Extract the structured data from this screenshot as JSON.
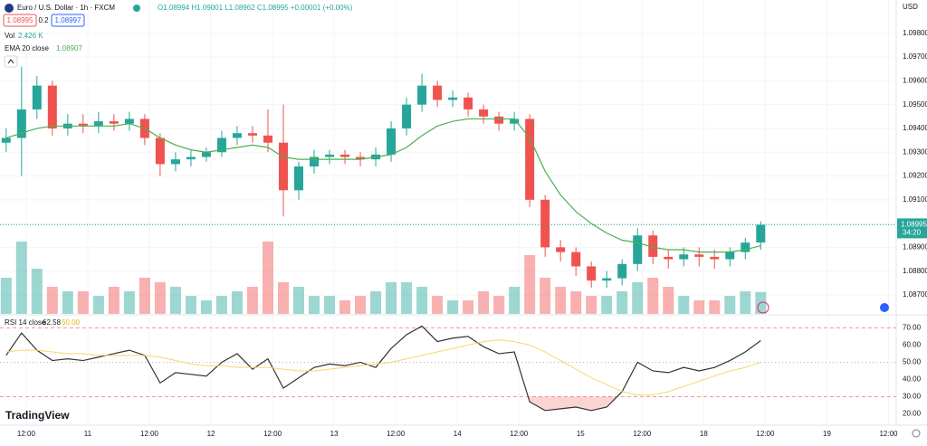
{
  "header": {
    "symbol": "Euro / U.S. Dollar · 1h · FXCM",
    "ohlc": "O1.08994 H1.09001 L1.08962 C1.08995 +0.00001 (+0.00%)",
    "sell": "1.08995",
    "spread": "0.2",
    "buy": "1.08997",
    "currency": "USD",
    "countdown": "34:20",
    "logo": "TradingView"
  },
  "chart_data": [
    {
      "type": "candlestick",
      "x": [
        0,
        1,
        2,
        3,
        4,
        5,
        6,
        7,
        8,
        9,
        10,
        11,
        12,
        13,
        14,
        15,
        16,
        17,
        18,
        19,
        20,
        21,
        22,
        23,
        24,
        25,
        26,
        27,
        28,
        29,
        30,
        31,
        32,
        33,
        34,
        35,
        36,
        37,
        38,
        39,
        40,
        41,
        42,
        43,
        44,
        45,
        46,
        47,
        48,
        49
      ],
      "open": [
        1.0934,
        1.0936,
        1.0948,
        1.0958,
        1.094,
        1.0942,
        1.0941,
        1.0943,
        1.0942,
        1.0944,
        1.0936,
        1.0925,
        1.0927,
        1.0928,
        1.093,
        1.0936,
        1.0938,
        1.0937,
        1.0934,
        1.0914,
        1.0924,
        1.0928,
        1.0929,
        1.0928,
        1.0927,
        1.0929,
        1.094,
        1.095,
        1.0958,
        1.0952,
        1.0953,
        1.0948,
        1.0945,
        1.0942,
        1.0944,
        1.091,
        1.089,
        1.0888,
        1.0882,
        1.0876,
        1.0877,
        1.0883,
        1.0895,
        1.0886,
        1.0885,
        1.0887,
        1.0886,
        1.0885,
        1.0888,
        1.0892
      ],
      "high": [
        1.094,
        1.0966,
        1.0962,
        1.096,
        1.0946,
        1.0946,
        1.0947,
        1.0946,
        1.0947,
        1.0946,
        1.0938,
        1.093,
        1.0931,
        1.0932,
        1.0939,
        1.0941,
        1.0941,
        1.0948,
        1.095,
        1.0926,
        1.0931,
        1.0931,
        1.0931,
        1.093,
        1.0932,
        1.0943,
        1.0953,
        1.0963,
        1.096,
        1.0956,
        1.0955,
        1.095,
        1.0947,
        1.0947,
        1.0946,
        1.0912,
        1.0893,
        1.089,
        1.0884,
        1.088,
        1.0885,
        1.0898,
        1.0897,
        1.0889,
        1.089,
        1.089,
        1.0889,
        1.089,
        1.0894,
        1.0901
      ],
      "low": [
        1.093,
        1.092,
        1.0944,
        1.0937,
        1.0937,
        1.0938,
        1.0938,
        1.0939,
        1.0939,
        1.0933,
        1.092,
        1.0922,
        1.0924,
        1.0926,
        1.0928,
        1.0933,
        1.0934,
        1.093,
        1.0903,
        1.091,
        1.0921,
        1.0925,
        1.0925,
        1.0924,
        1.0924,
        1.0926,
        1.0937,
        1.0947,
        1.0949,
        1.0949,
        1.0945,
        1.0942,
        1.0939,
        1.0939,
        1.0907,
        1.0886,
        1.0884,
        1.0878,
        1.0873,
        1.0873,
        1.0874,
        1.088,
        1.0883,
        1.0881,
        1.0882,
        1.0882,
        1.0881,
        1.0882,
        1.0885,
        1.0889
      ],
      "close": [
        1.0936,
        1.0948,
        1.0958,
        1.094,
        1.0942,
        1.0941,
        1.0943,
        1.0942,
        1.0944,
        1.0936,
        1.0925,
        1.0927,
        1.0928,
        1.093,
        1.0936,
        1.0938,
        1.0937,
        1.0934,
        1.0914,
        1.0924,
        1.0928,
        1.0929,
        1.0928,
        1.0927,
        1.0929,
        1.094,
        1.095,
        1.0958,
        1.0952,
        1.0953,
        1.0948,
        1.0945,
        1.0942,
        1.0944,
        1.091,
        1.089,
        1.0888,
        1.0882,
        1.0876,
        1.0877,
        1.0883,
        1.0895,
        1.0886,
        1.0885,
        1.0887,
        1.0886,
        1.0885,
        1.0888,
        1.0892,
        1.08995
      ],
      "last_label": "1.08995",
      "up_color": "#26a69a",
      "down_color": "#ef5350",
      "series": [
        {
          "name": "EMA 20 close",
          "color": "#4caf50",
          "value_label": "1.08907",
          "values": [
            1.0936,
            1.0938,
            1.094,
            1.0941,
            1.0941,
            1.0941,
            1.0941,
            1.0941,
            1.0942,
            1.094,
            1.0936,
            1.0933,
            1.0931,
            1.093,
            1.0931,
            1.0932,
            1.0933,
            1.0932,
            1.0928,
            1.0927,
            1.0927,
            1.0927,
            1.0927,
            1.0927,
            1.0928,
            1.0929,
            1.0932,
            1.0937,
            1.0941,
            1.0943,
            1.0944,
            1.0944,
            1.0944,
            1.0944,
            1.0936,
            1.0922,
            1.0912,
            1.0905,
            1.09,
            1.0896,
            1.0893,
            1.0892,
            1.089,
            1.0889,
            1.0889,
            1.0888,
            1.0888,
            1.0888,
            1.0889,
            1.08907
          ]
        }
      ],
      "volume": {
        "name": "Vol",
        "value_label": "2.426 K",
        "ylim": [
          0,
          10
        ],
        "values": [
          4,
          8,
          5,
          3,
          2.5,
          2.5,
          2,
          3,
          2.5,
          4,
          3.5,
          3,
          2,
          1.5,
          2,
          2.5,
          3,
          8,
          3.5,
          3,
          2,
          2,
          1.5,
          2,
          2.5,
          3.5,
          3.5,
          3,
          2,
          1.5,
          1.5,
          2.5,
          2,
          3,
          6.5,
          4,
          3,
          2.5,
          2,
          2,
          2.5,
          3.5,
          4,
          3,
          2,
          1.5,
          1.5,
          2,
          2.5,
          2.426
        ]
      },
      "xlim": [
        -0.4,
        57.8
      ],
      "xticks": [
        {
          "value": 1.3,
          "label": "12:00"
        },
        {
          "value": 5.3,
          "label": "11"
        },
        {
          "value": 9.3,
          "label": "12:00"
        },
        {
          "value": 13.3,
          "label": "12"
        },
        {
          "value": 17.3,
          "label": "12:00"
        },
        {
          "value": 21.3,
          "label": "13"
        },
        {
          "value": 25.3,
          "label": "12:00"
        },
        {
          "value": 29.3,
          "label": "14"
        },
        {
          "value": 33.3,
          "label": "12:00"
        },
        {
          "value": 37.3,
          "label": "15"
        },
        {
          "value": 41.3,
          "label": "12:00"
        },
        {
          "value": 45.3,
          "label": "18"
        },
        {
          "value": 49.3,
          "label": "12:00"
        },
        {
          "value": 53.3,
          "label": "19"
        },
        {
          "value": 57.3,
          "label": "12:00"
        }
      ],
      "ylim": [
        1.0862,
        1.0994
      ],
      "yticks": [
        {
          "value": 1.087,
          "label": "1.08700"
        },
        {
          "value": 1.088,
          "label": "1.08800"
        },
        {
          "value": 1.089,
          "label": "1.08900"
        },
        {
          "value": 1.09,
          "label": "1.09000"
        },
        {
          "value": 1.091,
          "label": "1.09100"
        },
        {
          "value": 1.092,
          "label": "1.09200"
        },
        {
          "value": 1.093,
          "label": "1.09300"
        },
        {
          "value": 1.094,
          "label": "1.09400"
        },
        {
          "value": 1.095,
          "label": "1.09500"
        },
        {
          "value": 1.096,
          "label": "1.09600"
        },
        {
          "value": 1.097,
          "label": "1.09700"
        },
        {
          "value": 1.098,
          "label": "1.09800"
        }
      ]
    },
    {
      "type": "line",
      "x": [
        0,
        1,
        2,
        3,
        4,
        5,
        6,
        7,
        8,
        9,
        10,
        11,
        12,
        13,
        14,
        15,
        16,
        17,
        18,
        19,
        20,
        21,
        22,
        23,
        24,
        25,
        26,
        27,
        28,
        29,
        30,
        31,
        32,
        33,
        34,
        35,
        36,
        37,
        38,
        39,
        40,
        41,
        42,
        43,
        44,
        45,
        46,
        47,
        48,
        49
      ],
      "series": [
        {
          "name": "RSI 14 close",
          "color": "#333333",
          "value_label": "62.58",
          "values": [
            54,
            67,
            57,
            51,
            52,
            51,
            53,
            55,
            57,
            54,
            38,
            44,
            43,
            42,
            50,
            55,
            46,
            52,
            35,
            41,
            47,
            49,
            48,
            50,
            47,
            58,
            66,
            71,
            62,
            64,
            65,
            59,
            55,
            56,
            27,
            22,
            23,
            24,
            22,
            24,
            33,
            50,
            45,
            44,
            47,
            45,
            47,
            51,
            56,
            62.58
          ]
        },
        {
          "color": "#f5d76e",
          "value_label": "50.00",
          "values": [
            56,
            57,
            57,
            56,
            55,
            55,
            54,
            54,
            54,
            54,
            53,
            51,
            49,
            48,
            48,
            47,
            47,
            47,
            46,
            45,
            45,
            46,
            47,
            48,
            49,
            50,
            52,
            54,
            56,
            58,
            60,
            62,
            63,
            62,
            60,
            56,
            51,
            46,
            41,
            37,
            33,
            31,
            31,
            33,
            36,
            39,
            42,
            45,
            47,
            50
          ]
        }
      ],
      "bands": [
        70,
        50,
        30
      ],
      "ylim": [
        13.5,
        77
      ],
      "yticks": [
        {
          "value": 20,
          "label": "20.00"
        },
        {
          "value": 30,
          "label": "30.00"
        },
        {
          "value": 40,
          "label": "40.00"
        },
        {
          "value": 50,
          "label": "50.00"
        },
        {
          "value": 60,
          "label": "60.00"
        },
        {
          "value": 70,
          "label": "70.00"
        }
      ]
    }
  ]
}
